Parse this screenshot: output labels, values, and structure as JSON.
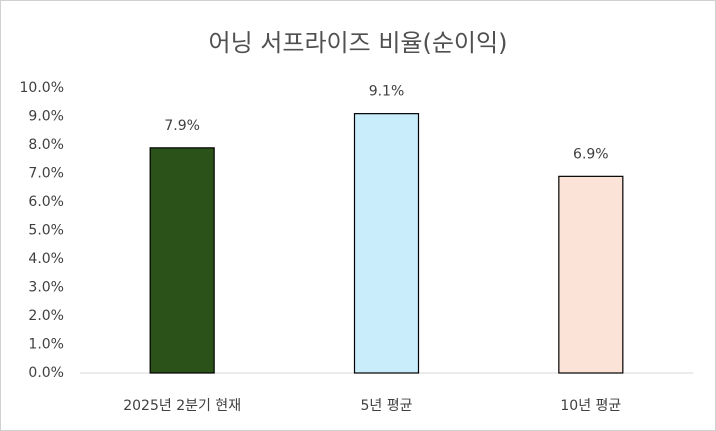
{
  "chart_data": {
    "type": "bar",
    "title": "어닝 서프라이즈 비율(순이익)",
    "categories": [
      "2025년 2분기 현재",
      "5년 평균",
      "10년 평균"
    ],
    "values": [
      7.9,
      9.1,
      6.9
    ],
    "value_labels": [
      "7.9%",
      "9.1%",
      "6.9%"
    ],
    "colors": [
      "#2b5219",
      "#caedfb",
      "#fbe3d7"
    ],
    "ylim": [
      0,
      10
    ],
    "yticks": [
      {
        "value": 0,
        "label": "0.0%"
      },
      {
        "value": 1,
        "label": "1.0%"
      },
      {
        "value": 2,
        "label": "2.0%"
      },
      {
        "value": 3,
        "label": "3.0%"
      },
      {
        "value": 4,
        "label": "4.0%"
      },
      {
        "value": 5,
        "label": "5.0%"
      },
      {
        "value": 6,
        "label": "6.0%"
      },
      {
        "value": 7,
        "label": "7.0%"
      },
      {
        "value": 8,
        "label": "8.0%"
      },
      {
        "value": 9,
        "label": "9.0%"
      },
      {
        "value": 10,
        "label": "10.0%"
      }
    ],
    "grid": false
  }
}
